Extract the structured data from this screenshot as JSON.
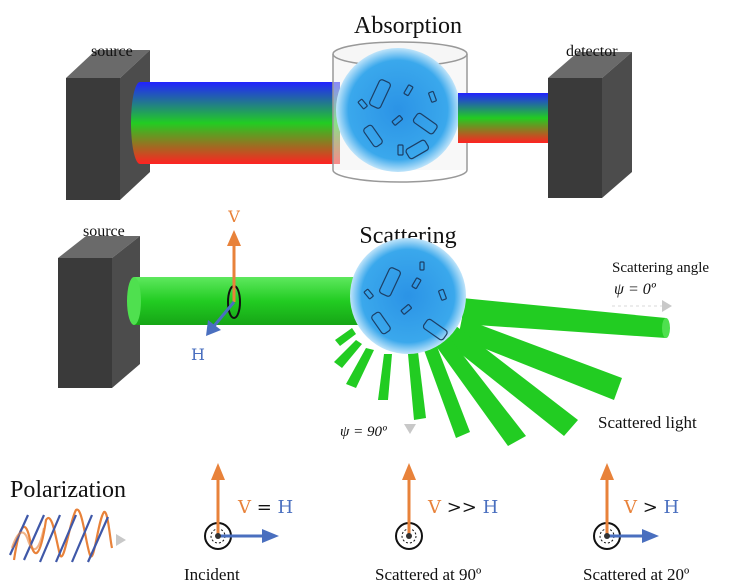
{
  "absorption": {
    "title": "Absorption",
    "source_label": "source",
    "detector_label": "detector"
  },
  "scattering": {
    "title": "Scattering",
    "source_label": "source",
    "axis_v": "V",
    "axis_h": "H",
    "angle_caption": "Scattering angle",
    "angle_zero": "ψ = 0º",
    "angle_ninety": "ψ = 90º",
    "scattered_light": "Scattered light"
  },
  "polarization": {
    "title": "Polarization",
    "panels": [
      {
        "v": "V",
        "rel": " = ",
        "h": "H",
        "caption": "Incident"
      },
      {
        "v": "V",
        "rel": " >> ",
        "h": "H",
        "caption": "Scattered at 90º"
      },
      {
        "v": "V",
        "rel": " > ",
        "h": "H",
        "caption": "Scattered at 20º"
      }
    ]
  },
  "colors": {
    "v_axis": "#e8823a",
    "h_axis": "#4a6fbf",
    "beam_green": "#22cc22",
    "sample_blue": "#39a7e6",
    "box_dark": "#3a3a3a"
  }
}
